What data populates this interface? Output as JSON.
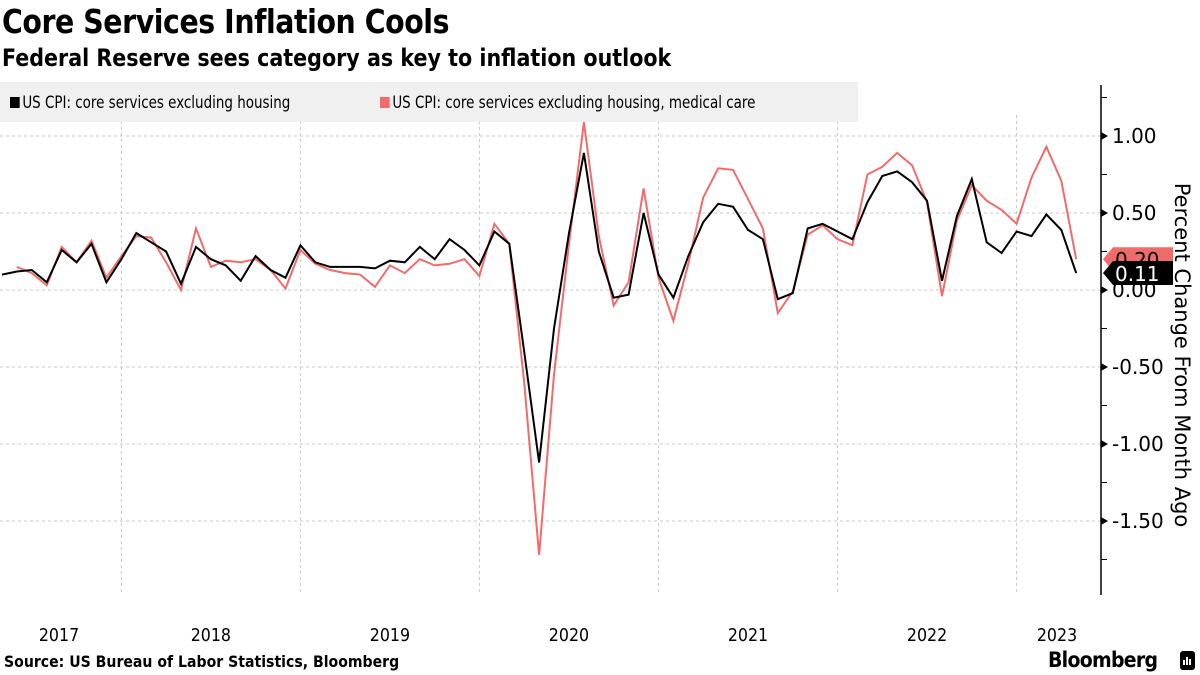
{
  "header": {
    "title": "Core Services Inflation Cools",
    "subtitle": "Federal Reserve sees category as key to inflation outlook"
  },
  "footer": {
    "source": "Source: US Bureau of Labor Statistics, Bloomberg",
    "brand": "Bloomberg",
    "brand_icon": "bloomberg-chart-icon"
  },
  "chart_data": {
    "type": "line",
    "title": "Core Services Inflation Cools",
    "subtitle": "Federal Reserve sees category as key to inflation outlook",
    "xlabel": "",
    "ylabel": "Percent Change From Month Ago",
    "ylim": [
      -1.9,
      1.35
    ],
    "yticks": [
      1.0,
      0.5,
      0.0,
      -0.5,
      -1.0,
      -1.5
    ],
    "ytick_labels": [
      "1.00",
      "0.50",
      "0.00",
      "-0.50",
      "-1.00",
      "-1.50"
    ],
    "xtick_labels": [
      "2017",
      "2018",
      "2019",
      "2020",
      "2021",
      "2022",
      "2023"
    ],
    "x_start": "2017-05",
    "x_end": "2023-05",
    "frequency": "monthly",
    "grid": true,
    "legend_position": "top-left",
    "y_axis_position": "right",
    "last_value_labels": [
      {
        "series": "US CPI: core services excluding housing, medical care",
        "text": "0.20",
        "color": "#f26b6b"
      },
      {
        "series": "US CPI: core services excluding housing",
        "text": "0.11",
        "color": "#000000"
      }
    ],
    "series": [
      {
        "name": "US CPI: core services excluding housing",
        "color": "#000000",
        "start_index": 0,
        "values": [
          0.1,
          0.12,
          0.13,
          0.05,
          0.26,
          0.18,
          0.3,
          0.05,
          0.2,
          0.37,
          0.31,
          0.25,
          0.04,
          0.28,
          0.2,
          0.16,
          0.06,
          0.22,
          0.13,
          0.08,
          0.29,
          0.18,
          0.15,
          0.15,
          0.15,
          0.14,
          0.19,
          0.18,
          0.28,
          0.2,
          0.33,
          0.26,
          0.16,
          0.38,
          0.3,
          -0.4,
          -1.12,
          -0.25,
          0.37,
          0.89,
          0.25,
          -0.05,
          -0.03,
          0.5,
          0.1,
          -0.05,
          0.22,
          0.44,
          0.56,
          0.54,
          0.39,
          0.33,
          -0.06,
          -0.02,
          0.4,
          0.43,
          0.38,
          0.33,
          0.57,
          0.74,
          0.77,
          0.7,
          0.58,
          0.06,
          0.48,
          0.72,
          0.31,
          0.24,
          0.38,
          0.35,
          0.49,
          0.39,
          0.11
        ]
      },
      {
        "name": "US CPI: core services excluding housing, medical care",
        "color": "#f26b6b",
        "start_index": 1,
        "values": [
          0.15,
          0.11,
          0.03,
          0.28,
          0.18,
          0.32,
          0.08,
          0.22,
          0.35,
          0.34,
          0.18,
          0.0,
          0.4,
          0.15,
          0.19,
          0.18,
          0.2,
          0.13,
          0.01,
          0.26,
          0.17,
          0.13,
          0.11,
          0.1,
          0.02,
          0.16,
          0.11,
          0.2,
          0.16,
          0.17,
          0.2,
          0.09,
          0.43,
          0.3,
          -0.6,
          -1.72,
          -0.55,
          0.3,
          1.09,
          0.35,
          -0.1,
          0.05,
          0.66,
          0.08,
          -0.2,
          0.17,
          0.6,
          0.79,
          0.78,
          0.59,
          0.4,
          -0.15,
          -0.01,
          0.36,
          0.42,
          0.33,
          0.29,
          0.75,
          0.8,
          0.89,
          0.81,
          0.57,
          -0.04,
          0.45,
          0.68,
          0.58,
          0.52,
          0.43,
          0.73,
          0.93,
          0.71,
          0.2
        ]
      }
    ]
  }
}
